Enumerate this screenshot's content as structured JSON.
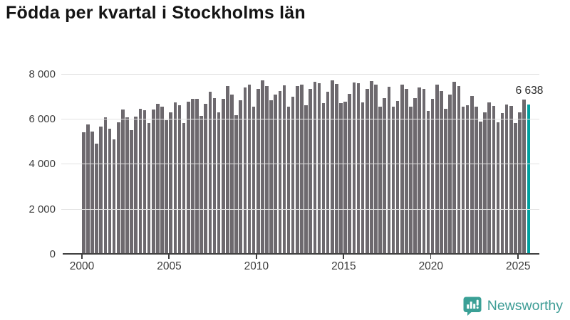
{
  "title": "Födda per kvartal i Stockholms län",
  "chart_data": {
    "type": "bar",
    "title": "Födda per kvartal i Stockholms län",
    "xlabel": "",
    "ylabel": "",
    "x_start": "2000 Q1",
    "x_end": "2025 Q3",
    "x_frequency": "quarterly",
    "values": [
      5390,
      5760,
      5440,
      4900,
      5640,
      6050,
      5550,
      5080,
      5850,
      6400,
      6060,
      5500,
      6090,
      6450,
      6370,
      5800,
      6400,
      6660,
      6550,
      5920,
      6290,
      6740,
      6600,
      5810,
      6750,
      6870,
      6870,
      6130,
      6660,
      7190,
      6920,
      6290,
      6870,
      7450,
      7080,
      6160,
      6830,
      7390,
      7500,
      6550,
      7340,
      7690,
      7450,
      6820,
      7060,
      7240,
      7480,
      6550,
      6970,
      7450,
      7530,
      6590,
      7320,
      7640,
      7580,
      6690,
      7190,
      7690,
      7550,
      6690,
      6760,
      7110,
      7610,
      7580,
      6740,
      7340,
      7660,
      7530,
      6530,
      6900,
      7430,
      6540,
      6800,
      7500,
      7320,
      6550,
      6900,
      7390,
      7340,
      6340,
      6870,
      7500,
      7220,
      6430,
      7060,
      7640,
      7460,
      6550,
      6600,
      7010,
      6530,
      5870,
      6270,
      6740,
      6570,
      5850,
      6250,
      6640,
      6560,
      5810,
      6290,
      6850,
      6638
    ],
    "highlight": {
      "index": 102,
      "period": "2025 Q3",
      "value": 6638,
      "label": "6 638",
      "color": "#00a0a0"
    },
    "bar_color": "#6d696e",
    "ylim": [
      0,
      8430
    ],
    "y_ticks": [
      {
        "value": 0,
        "label": "0"
      },
      {
        "value": 2000,
        "label": "2 000"
      },
      {
        "value": 4000,
        "label": "4 000"
      },
      {
        "value": 6000,
        "label": "6 000"
      },
      {
        "value": 8000,
        "label": "8 000"
      }
    ],
    "y_gridlines": [
      2000,
      4000,
      6000,
      8000
    ],
    "x_ticks": [
      {
        "index": 0,
        "label": "2000"
      },
      {
        "index": 20,
        "label": "2005"
      },
      {
        "index": 40,
        "label": "2010"
      },
      {
        "index": 60,
        "label": "2015"
      },
      {
        "index": 80,
        "label": "2020"
      },
      {
        "index": 100,
        "label": "2025"
      }
    ],
    "grid": "horizontal only",
    "legend": "none"
  },
  "annotation": {
    "label": "6 638"
  },
  "branding": {
    "name": "Newsworthy",
    "text_color": "#3e9d96",
    "icon_color": "#3aa096"
  },
  "colors": {
    "background": "#ffffff",
    "bar": "#6d696e",
    "highlight": "#00a0a0",
    "gridline": "#e3e3e3",
    "axis": "#3f3f3f",
    "tick_text": "#3c3c3c",
    "title_text": "#141414"
  }
}
